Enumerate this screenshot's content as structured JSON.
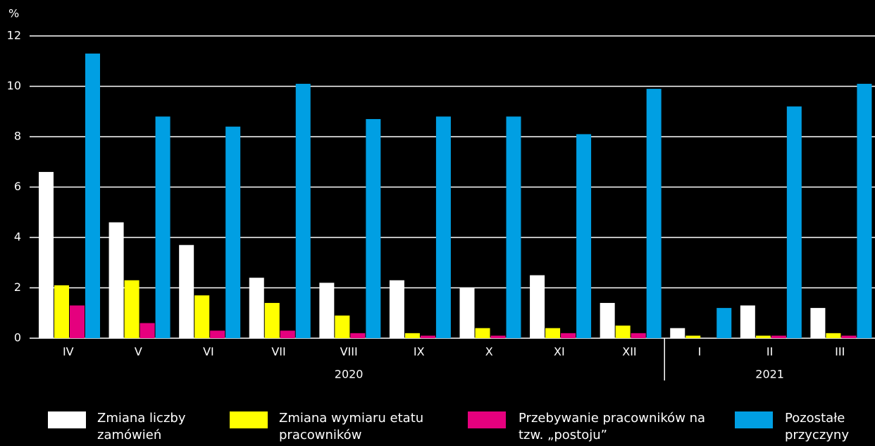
{
  "chart_data": {
    "type": "bar",
    "y_unit": "%",
    "categories": [
      "IV",
      "V",
      "VI",
      "VII",
      "VIII",
      "IX",
      "X",
      "XI",
      "XII",
      "I",
      "II",
      "III"
    ],
    "category_groups": [
      {
        "label": "2020",
        "size": 9
      },
      {
        "label": "2021",
        "size": 3
      }
    ],
    "series": [
      {
        "name": "Zmiana liczby zamówień",
        "color": "#ffffff",
        "values": [
          6.6,
          4.6,
          3.7,
          2.4,
          2.2,
          2.3,
          2.0,
          2.5,
          1.4,
          0.4,
          1.3,
          1.2
        ]
      },
      {
        "name": "Zmiana wymiaru etatu pracowników",
        "color": "#ffff00",
        "values": [
          2.1,
          2.3,
          1.7,
          1.4,
          0.9,
          0.2,
          0.4,
          0.4,
          0.5,
          0.1,
          0.1,
          0.2
        ]
      },
      {
        "name": "Przebywanie pracowników na tzw. „postoju”",
        "color": "#e5007e",
        "values": [
          1.3,
          0.6,
          0.3,
          0.3,
          0.2,
          0.1,
          0.1,
          0.2,
          0.2,
          0.0,
          0.1,
          0.1
        ]
      },
      {
        "name": "Pozostałe przyczyny",
        "color": "#009fe3",
        "values": [
          11.3,
          8.8,
          8.4,
          10.1,
          8.7,
          8.8,
          8.8,
          8.1,
          9.9,
          1.2,
          9.2,
          10.1
        ]
      }
    ],
    "ylim": [
      0,
      12
    ],
    "yticks": [
      0,
      2,
      4,
      6,
      8,
      10,
      12
    ],
    "grid": true
  }
}
